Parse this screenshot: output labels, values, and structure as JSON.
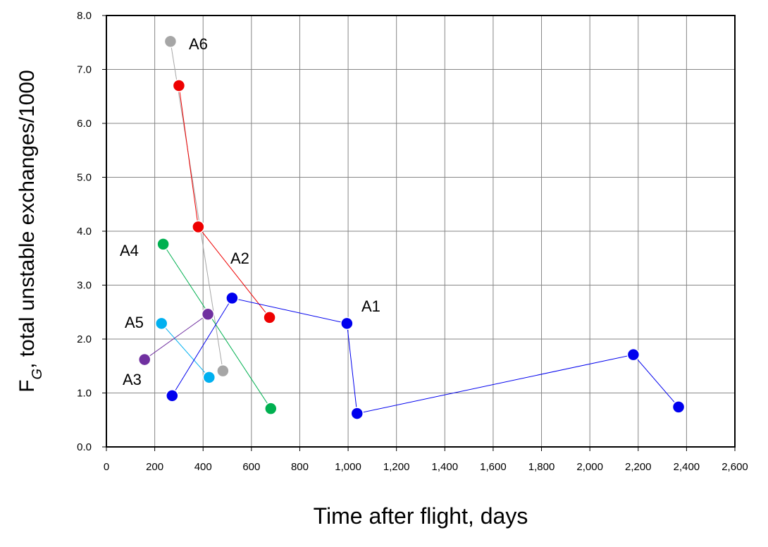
{
  "chart_data": {
    "type": "scatter",
    "title": "",
    "xlabel": "Time after flight, days",
    "ylabel_main": "F",
    "ylabel_sub": "G",
    "ylabel_rest": ", total unstable exchanges/1000",
    "xlim": [
      0,
      2600
    ],
    "ylim": [
      0,
      8
    ],
    "xticks": [
      0,
      200,
      400,
      600,
      800,
      1000,
      1200,
      1400,
      1600,
      1800,
      2000,
      2200,
      2400,
      2600
    ],
    "xtick_labels": [
      "0",
      "200",
      "400",
      "600",
      "800",
      "1,000",
      "1,200",
      "1,400",
      "1,600",
      "1,800",
      "2,000",
      "2,200",
      "2,400",
      "2,600"
    ],
    "yticks": [
      0,
      1,
      2,
      3,
      4,
      5,
      6,
      7,
      8
    ],
    "ytick_labels": [
      "0.0",
      "1.0",
      "2.0",
      "3.0",
      "4.0",
      "5.0",
      "6.0",
      "7.0",
      "8.0"
    ],
    "grid": true,
    "series": [
      {
        "name": "A1",
        "color": "#0000ee",
        "points": [
          [
            272,
            0.95
          ],
          [
            520,
            2.76
          ],
          [
            995,
            2.29
          ],
          [
            1037,
            0.62
          ],
          [
            2180,
            1.71
          ],
          [
            2367,
            0.74
          ]
        ]
      },
      {
        "name": "A2",
        "color": "#ee0000",
        "points": [
          [
            300,
            6.7
          ],
          [
            380,
            4.08
          ],
          [
            675,
            2.4
          ]
        ]
      },
      {
        "name": "A3",
        "color": "#7030a0",
        "points": [
          [
            158,
            1.62
          ],
          [
            420,
            2.46
          ]
        ]
      },
      {
        "name": "A4",
        "color": "#00b050",
        "points": [
          [
            235,
            3.76
          ],
          [
            680,
            0.71
          ]
        ]
      },
      {
        "name": "A5",
        "color": "#00b0f0",
        "points": [
          [
            228,
            2.29
          ],
          [
            425,
            1.29
          ]
        ]
      },
      {
        "name": "A6",
        "color": "#a6a6a6",
        "points": [
          [
            265,
            7.52
          ],
          [
            482,
            1.41
          ]
        ]
      }
    ]
  }
}
